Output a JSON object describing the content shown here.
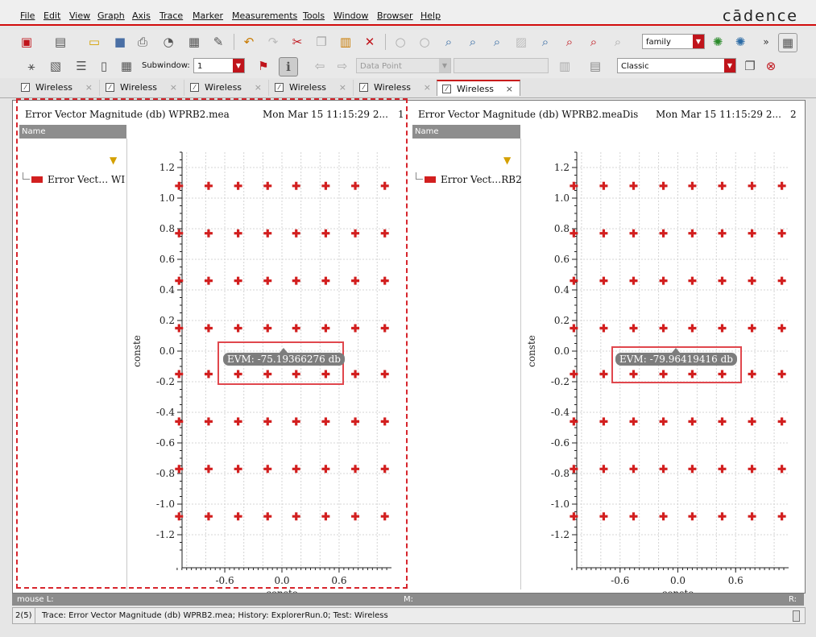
{
  "menu": {
    "items": [
      "File",
      "Edit",
      "View",
      "Graph",
      "Axis",
      "Trace",
      "Marker",
      "Measurements",
      "Tools",
      "Window",
      "Browser",
      "Help"
    ],
    "logo": "cādence"
  },
  "toolbar2": {
    "subwindow_label": "Subwindow:",
    "subwindow_value": "1",
    "data_point_placeholder": "Data Point",
    "family_value": "family",
    "style_value": "Classic"
  },
  "tabs": [
    {
      "label": "Wireless",
      "active": false
    },
    {
      "label": "Wireless",
      "active": false
    },
    {
      "label": "Wireless",
      "active": false
    },
    {
      "label": "Wireless",
      "active": false
    },
    {
      "label": "Wireless",
      "active": false
    },
    {
      "label": "Wireless",
      "active": true
    }
  ],
  "panels": [
    {
      "title": "Error Vector Magnitude (db) WPRB2.mea",
      "timestamp": "Mon Mar 15 11:15:29 2...",
      "subwindow_num": "1",
      "name_header": "Name",
      "legend_label": "Error Vect… WI",
      "tooltip": "EVM: -75.19366276 db"
    },
    {
      "title": "Error Vector Magnitude (db) WPRB2.meaDis",
      "timestamp": "Mon Mar 15 11:15:29 2...",
      "subwindow_num": "2",
      "name_header": "Name",
      "legend_label": "Error Vect…RB2",
      "tooltip": "EVM: -79.96419416 db"
    }
  ],
  "chart_data": [
    {
      "type": "scatter",
      "title": "Error Vector Magnitude (db) WPRB2.mea",
      "xlabel": "conste",
      "ylabel": "conste",
      "x_ticks": [
        "-0.6",
        "0.0",
        "0.6"
      ],
      "y_ticks": [
        "1.2",
        "1.0",
        "0.8",
        "0.6",
        "0.4",
        "0.2",
        "0.0",
        "-0.2",
        "-0.4",
        "-0.6",
        "-0.8",
        "-1.0",
        "-1.2"
      ],
      "xlim": [
        -1.15,
        1.15
      ],
      "ylim": [
        -1.3,
        1.3
      ],
      "grid": true,
      "x_levels": [
        -1.08,
        -0.77,
        -0.46,
        -0.15,
        0.15,
        0.46,
        0.77,
        1.08
      ],
      "y_levels": [
        1.08,
        0.77,
        0.46,
        0.15,
        -0.15,
        -0.46,
        -0.77,
        -1.08
      ],
      "series": [
        {
          "name": "Error Vect… WI",
          "color": "#d21f1f",
          "marker": "plus"
        }
      ]
    },
    {
      "type": "scatter",
      "title": "Error Vector Magnitude (db) WPRB2.meaDis",
      "xlabel": "conste",
      "ylabel": "conste",
      "x_ticks": [
        "-0.6",
        "0.0",
        "0.6"
      ],
      "y_ticks": [
        "1.2",
        "1.0",
        "0.8",
        "0.6",
        "0.4",
        "0.2",
        "0.0",
        "-0.2",
        "-0.4",
        "-0.6",
        "-0.8",
        "-1.0",
        "-1.2"
      ],
      "xlim": [
        -1.15,
        1.15
      ],
      "ylim": [
        -1.3,
        1.3
      ],
      "grid": true,
      "x_levels": [
        -1.08,
        -0.77,
        -0.46,
        -0.15,
        0.15,
        0.46,
        0.77,
        1.08
      ],
      "y_levels": [
        1.08,
        0.77,
        0.46,
        0.15,
        -0.15,
        -0.46,
        -0.77,
        -1.08
      ],
      "series": [
        {
          "name": "Error Vect…RB2",
          "color": "#d21f1f",
          "marker": "plus"
        }
      ]
    }
  ],
  "bottom": {
    "mouse_l": "mouse L:",
    "mouse_m": "M:",
    "mouse_r": "R:",
    "status_count": "2(5)",
    "status_text": "Trace: Error Vector Magnitude (db) WPRB2.mea; History: ExplorerRun.0; Test: Wireless"
  },
  "colors": {
    "accent": "#d21f1f",
    "selection": "#d7262d",
    "tooltip_bg": "#7d7d7d"
  }
}
